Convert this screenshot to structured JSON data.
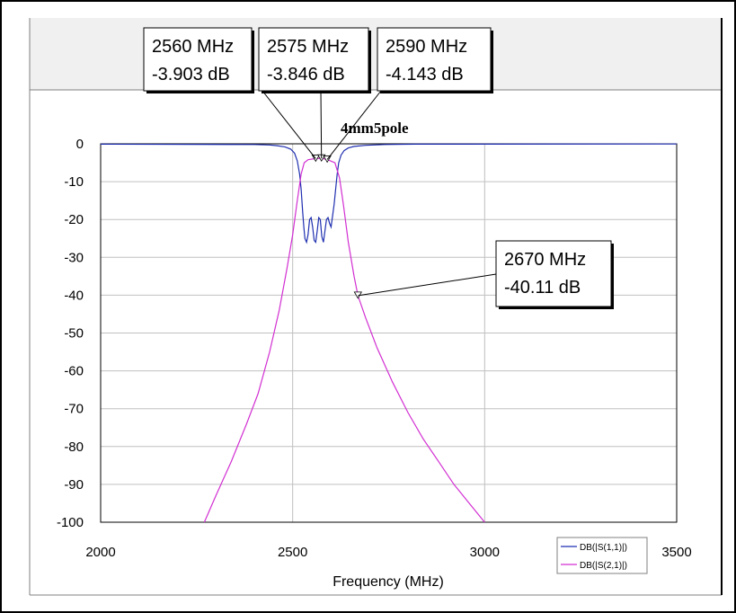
{
  "chart_data": {
    "type": "line",
    "title": "4mm5pole",
    "xlabel": "Frequency (MHz)",
    "ylabel": "",
    "xlim": [
      2000,
      3500
    ],
    "ylim": [
      -100,
      0
    ],
    "xticks": [
      2000,
      2500,
      3000,
      3500
    ],
    "yticks": [
      0,
      -10,
      -20,
      -30,
      -40,
      -50,
      -60,
      -70,
      -80,
      -90,
      -100
    ],
    "grid": true,
    "legend_position": "bottom-right",
    "series": [
      {
        "name": "DB(|S(1,1)|)",
        "color": "#1f2fb0",
        "x": [
          2000,
          2400,
          2440,
          2460,
          2480,
          2495,
          2505,
          2512,
          2518,
          2522,
          2526,
          2529,
          2532,
          2536,
          2540,
          2544,
          2548,
          2552,
          2556,
          2560,
          2564,
          2568,
          2572,
          2576,
          2580,
          2584,
          2588,
          2592,
          2596,
          2600,
          2604,
          2608,
          2612,
          2616,
          2620,
          2626,
          2634,
          2645,
          2660,
          2690,
          2740,
          2820,
          3500
        ],
        "y": [
          -0.1,
          -0.2,
          -0.3,
          -0.5,
          -0.8,
          -1.4,
          -2.5,
          -4.5,
          -8,
          -12,
          -18,
          -22,
          -25,
          -26,
          -24,
          -20,
          -19.5,
          -22,
          -25.5,
          -26,
          -23,
          -19.5,
          -20,
          -24.5,
          -26,
          -23,
          -20,
          -19.5,
          -21,
          -22,
          -19,
          -16,
          -12,
          -8,
          -5,
          -3,
          -1.8,
          -1.1,
          -0.7,
          -0.4,
          -0.2,
          -0.1,
          -0.05
        ]
      },
      {
        "name": "DB(|S(2,1)|)",
        "color": "#d22fd2",
        "x": [
          2270,
          2300,
          2340,
          2380,
          2410,
          2440,
          2465,
          2485,
          2500,
          2512,
          2522,
          2530,
          2540,
          2560,
          2575,
          2590,
          2610,
          2622,
          2632,
          2645,
          2660,
          2670,
          2690,
          2720,
          2760,
          2800,
          2840,
          2880,
          2920,
          2960,
          3000
        ],
        "y": [
          -100,
          -93,
          -84,
          -74,
          -66,
          -55,
          -44,
          -33,
          -24,
          -15,
          -8,
          -5,
          -4.2,
          -3.903,
          -3.846,
          -4.143,
          -5,
          -9,
          -16,
          -26,
          -35,
          -40.11,
          -46,
          -54,
          -63,
          -71,
          -78,
          -84,
          -90,
          -95,
          -100
        ]
      }
    ],
    "markers": [
      {
        "x": 2560,
        "y": -3.903,
        "freq_label": "2560 MHz",
        "db_label": "-3.903 dB"
      },
      {
        "x": 2575,
        "y": -3.846,
        "freq_label": "2575 MHz",
        "db_label": "-3.846 dB"
      },
      {
        "x": 2590,
        "y": -4.143,
        "freq_label": "2590 MHz",
        "db_label": "-4.143 dB"
      },
      {
        "x": 2670,
        "y": -40.11,
        "freq_label": "2670 MHz",
        "db_label": "-40.11 dB"
      }
    ]
  }
}
